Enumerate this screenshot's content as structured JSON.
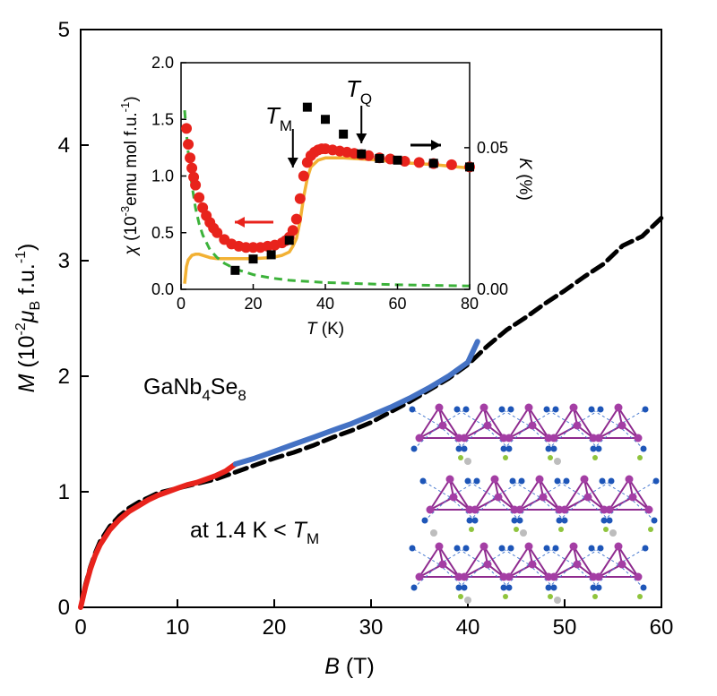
{
  "chart_data": [
    {
      "type": "line",
      "xlabel": {
        "sym": "B",
        "unit": " (T)"
      },
      "ylabel": {
        "sym": "M",
        "pre": " (10",
        "exp": "-2",
        "mu": "μ",
        "sub": "B",
        "post": " f.u.",
        "exp2": "-1",
        "close": ")"
      },
      "xlim": [
        0,
        60
      ],
      "ylim": [
        0,
        5
      ],
      "xticks": [
        0,
        10,
        20,
        30,
        40,
        50,
        60
      ],
      "yticks": [
        0,
        1,
        2,
        3,
        4,
        5
      ],
      "annotations": {
        "compound": {
          "a": "GaNb",
          "s1": "4",
          "b": "Se",
          "s2": "8"
        },
        "condition": {
          "a": "at 1.4 K < ",
          "sym": "T",
          "sub": "M"
        }
      },
      "series": [
        {
          "style": "dashed",
          "color": "#000000",
          "x": [
            0,
            0.5,
            1,
            1.5,
            2,
            3,
            4,
            5,
            6,
            7,
            8,
            10,
            12,
            14,
            16,
            18,
            20,
            22,
            24,
            26,
            28,
            30,
            32,
            34,
            36,
            38,
            40,
            42,
            44,
            46,
            48,
            50,
            52,
            54,
            56,
            58,
            60
          ],
          "y": [
            0,
            0.2,
            0.35,
            0.47,
            0.57,
            0.7,
            0.79,
            0.86,
            0.91,
            0.95,
            0.99,
            1.03,
            1.07,
            1.11,
            1.17,
            1.23,
            1.29,
            1.34,
            1.4,
            1.47,
            1.53,
            1.6,
            1.69,
            1.78,
            1.88,
            1.98,
            2.1,
            2.26,
            2.4,
            2.51,
            2.63,
            2.74,
            2.86,
            2.97,
            3.13,
            3.21,
            3.37
          ]
        },
        {
          "style": "solid",
          "color": "#e8231c",
          "x": [
            0,
            0.5,
            1,
            1.5,
            2,
            3,
            4,
            5,
            6,
            7,
            8,
            9,
            10,
            11,
            12,
            13,
            14,
            15,
            16
          ],
          "y": [
            0,
            0.18,
            0.33,
            0.45,
            0.54,
            0.67,
            0.76,
            0.83,
            0.88,
            0.93,
            0.97,
            1.0,
            1.03,
            1.06,
            1.08,
            1.11,
            1.14,
            1.18,
            1.24
          ]
        },
        {
          "style": "solid",
          "color": "#4472c4",
          "x": [
            16,
            18,
            20,
            22,
            24,
            26,
            28,
            30,
            32,
            34,
            36,
            38,
            40,
            41
          ],
          "y": [
            1.24,
            1.29,
            1.35,
            1.41,
            1.47,
            1.53,
            1.59,
            1.66,
            1.73,
            1.81,
            1.9,
            2.0,
            2.12,
            2.3
          ]
        }
      ]
    },
    {
      "type": "scatter",
      "xlabel": {
        "sym": "T",
        "unit": " (K)"
      },
      "ylabel": {
        "sym": "χ",
        "pre": " (10",
        "exp": "-3",
        "mid": "emu mol f.u.",
        "exp2": "-1",
        "close": ")"
      },
      "y2label": {
        "sym": "K",
        "unit": " (%)"
      },
      "xlim": [
        0,
        80
      ],
      "ylim": [
        0,
        2.0
      ],
      "y2lim": [
        0,
        0.08
      ],
      "xticks": [
        0,
        20,
        40,
        60,
        80
      ],
      "yticks": [
        "0.0",
        "0.5",
        "1.0",
        "1.5",
        "2.0"
      ],
      "y2ticks": [
        "0.00",
        "0.05"
      ],
      "annotations": {
        "TM": {
          "sym": "T",
          "sub": "M",
          "x": 31
        },
        "TQ": {
          "sym": "T",
          "sub": "Q",
          "x": 50
        }
      },
      "series": [
        {
          "kind": "markers",
          "color": "#e8231c",
          "x": [
            1.5,
            2,
            2.5,
            3,
            3.5,
            4,
            5,
            6,
            7,
            8,
            9,
            10,
            12,
            14,
            16,
            18,
            20,
            22,
            24,
            26,
            28,
            29,
            30,
            31,
            32,
            33,
            34,
            35,
            36,
            37,
            38,
            39,
            40,
            42,
            44,
            46,
            48,
            50,
            52,
            55,
            58,
            62,
            66,
            70,
            75,
            80
          ],
          "y": [
            1.42,
            1.28,
            1.16,
            1.07,
            0.99,
            0.92,
            0.81,
            0.72,
            0.65,
            0.59,
            0.54,
            0.5,
            0.44,
            0.4,
            0.38,
            0.37,
            0.37,
            0.37,
            0.38,
            0.39,
            0.41,
            0.43,
            0.46,
            0.52,
            0.62,
            0.8,
            1.0,
            1.12,
            1.18,
            1.21,
            1.23,
            1.24,
            1.24,
            1.23,
            1.22,
            1.21,
            1.2,
            1.19,
            1.18,
            1.16,
            1.15,
            1.13,
            1.12,
            1.11,
            1.1,
            1.08
          ]
        },
        {
          "kind": "line",
          "color": "#f2b134",
          "x": [
            1,
            1.5,
            2,
            3,
            4,
            5,
            6,
            8,
            10,
            15,
            20,
            25,
            28,
            30,
            31,
            32,
            33,
            34,
            35,
            36,
            38,
            40,
            45,
            50,
            55,
            60,
            70,
            80
          ],
          "y": [
            0.05,
            0.2,
            0.26,
            0.3,
            0.31,
            0.31,
            0.3,
            0.28,
            0.27,
            0.27,
            0.27,
            0.28,
            0.3,
            0.33,
            0.38,
            0.45,
            0.6,
            0.82,
            0.98,
            1.08,
            1.14,
            1.16,
            1.16,
            1.15,
            1.14,
            1.12,
            1.1,
            1.07
          ]
        },
        {
          "kind": "dashed",
          "color": "#3cb23a",
          "x": [
            1,
            1.5,
            2,
            3,
            4,
            5,
            6,
            8,
            10,
            12,
            15,
            20,
            25,
            30,
            40,
            50,
            60,
            70,
            80
          ],
          "y": [
            1.58,
            1.38,
            1.2,
            0.92,
            0.72,
            0.58,
            0.48,
            0.35,
            0.28,
            0.23,
            0.18,
            0.13,
            0.1,
            0.08,
            0.06,
            0.05,
            0.04,
            0.035,
            0.03
          ]
        },
        {
          "kind": "squares",
          "color": "#000000",
          "axis": "right",
          "x": [
            15,
            20,
            25,
            30,
            35,
            40,
            45,
            50,
            55,
            60,
            70,
            80
          ],
          "y": [
            0.0067,
            0.0107,
            0.0122,
            0.0173,
            0.0643,
            0.06,
            0.0548,
            0.0478,
            0.0462,
            0.0456,
            0.0445,
            0.0432
          ]
        }
      ]
    }
  ],
  "structure_image": {
    "icon": "crystal-structure-image"
  }
}
